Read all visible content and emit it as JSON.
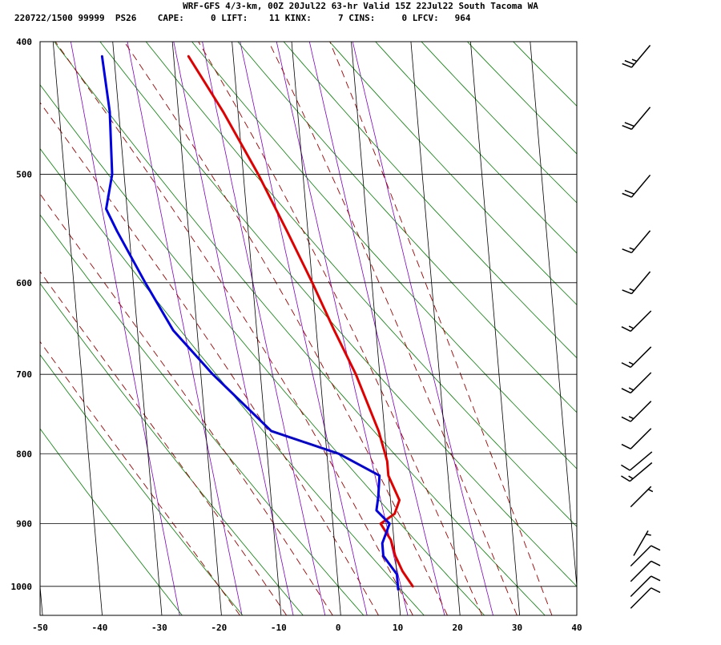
{
  "header": {
    "line1": "WRF-GFS 4/3-km, 00Z 20Jul22 63-hr Valid 15Z 22Jul22 South Tacoma WA",
    "line2": "220722/1500 99999  PS26    CAPE:     0 LIFT:    11 KINX:     7 CINS:     0 LFCV:   964"
  },
  "chart_data": {
    "type": "line",
    "diagram": "skew-T log-P sounding",
    "x_axis": {
      "ticks": [
        -50,
        -40,
        -30,
        -20,
        -10,
        0,
        10,
        20,
        30,
        40
      ],
      "range": [
        -50,
        40
      ]
    },
    "y_axis": {
      "ticks": [
        400,
        500,
        600,
        700,
        800,
        900,
        1000
      ],
      "range": [
        400,
        1050
      ],
      "scale": "log",
      "inverted": true
    },
    "grid": true,
    "series": [
      {
        "role": "temperature",
        "color": "#e00000",
        "points": [
          {
            "p": 1000,
            "t": 12.5
          },
          {
            "p": 975,
            "t": 11.0
          },
          {
            "p": 950,
            "t": 10.0
          },
          {
            "p": 925,
            "t": 9.5
          },
          {
            "p": 900,
            "t": 8.0
          },
          {
            "p": 885,
            "t": 10.5
          },
          {
            "p": 865,
            "t": 11.5
          },
          {
            "p": 830,
            "t": 10.0
          },
          {
            "p": 810,
            "t": 10.0
          },
          {
            "p": 770,
            "t": 9.0
          },
          {
            "p": 700,
            "t": 6.0
          },
          {
            "p": 650,
            "t": 3.0
          },
          {
            "p": 600,
            "t": 0.0
          },
          {
            "p": 550,
            "t": -3.5
          },
          {
            "p": 500,
            "t": -7.5
          },
          {
            "p": 450,
            "t": -12.5
          },
          {
            "p": 410,
            "t": -17.5
          }
        ]
      },
      {
        "role": "dewpoint",
        "color": "#0000e0",
        "points": [
          {
            "p": 1005,
            "t": 10.0
          },
          {
            "p": 980,
            "t": 10.0
          },
          {
            "p": 950,
            "t": 8.0
          },
          {
            "p": 930,
            "t": 8.0
          },
          {
            "p": 900,
            "t": 9.5
          },
          {
            "p": 880,
            "t": 7.5
          },
          {
            "p": 860,
            "t": 8.0
          },
          {
            "p": 830,
            "t": 8.5
          },
          {
            "p": 800,
            "t": 2.0
          },
          {
            "p": 770,
            "t": -9.0
          },
          {
            "p": 700,
            "t": -18.0
          },
          {
            "p": 650,
            "t": -24.0
          },
          {
            "p": 600,
            "t": -28.0
          },
          {
            "p": 550,
            "t": -32.0
          },
          {
            "p": 530,
            "t": -33.5
          },
          {
            "p": 500,
            "t": -32.0
          },
          {
            "p": 450,
            "t": -31.5
          },
          {
            "p": 410,
            "t": -32.0
          }
        ]
      }
    ],
    "winds": [
      {
        "p": 410,
        "dir": 220,
        "kt": 25
      },
      {
        "p": 455,
        "dir": 220,
        "kt": 20
      },
      {
        "p": 510,
        "dir": 220,
        "kt": 20
      },
      {
        "p": 560,
        "dir": 220,
        "kt": 15
      },
      {
        "p": 600,
        "dir": 220,
        "kt": 15
      },
      {
        "p": 640,
        "dir": 225,
        "kt": 15
      },
      {
        "p": 680,
        "dir": 225,
        "kt": 15
      },
      {
        "p": 710,
        "dir": 225,
        "kt": 15
      },
      {
        "p": 745,
        "dir": 225,
        "kt": 15
      },
      {
        "p": 780,
        "dir": 225,
        "kt": 10
      },
      {
        "p": 810,
        "dir": 230,
        "kt": 10
      },
      {
        "p": 825,
        "dir": 230,
        "kt": 15
      },
      {
        "p": 860,
        "dir": 45,
        "kt": 5
      },
      {
        "p": 930,
        "dir": 30,
        "kt": 5
      },
      {
        "p": 950,
        "dir": 45,
        "kt": 10
      },
      {
        "p": 975,
        "dir": 45,
        "kt": 10
      },
      {
        "p": 1000,
        "dir": 45,
        "kt": 10
      },
      {
        "p": 1020,
        "dir": 45,
        "kt": 10
      }
    ],
    "colors": {
      "isobar_isotherm": "#000000",
      "dry_adiabat": "#008000",
      "moist_adiabat": "#a00000",
      "mixing_ratio": "#8000c0"
    }
  }
}
